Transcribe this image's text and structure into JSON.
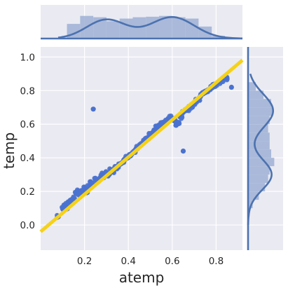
{
  "chart_data": {
    "type": "scatter",
    "subtype": "joint-plot-with-regression-and-marginal-distributions",
    "xlabel": "atemp",
    "ylabel": "temp",
    "xlim": [
      0.0,
      0.92
    ],
    "ylim": [
      -0.15,
      1.06
    ],
    "x_ticks": [
      0.2,
      0.4,
      0.6,
      0.8
    ],
    "x_tick_labels": [
      "0.2",
      "0.4",
      "0.6",
      "0.8"
    ],
    "y_ticks": [
      0.0,
      0.2,
      0.4,
      0.6,
      0.8,
      1.0
    ],
    "y_tick_labels": [
      "0.0",
      "0.2",
      "0.4",
      "0.6",
      "0.8",
      "1.0"
    ],
    "grid": true,
    "colors": {
      "background": "#eaeaf2",
      "grid": "#ffffff",
      "points": "#4a72cf",
      "regression_line": "#f5d218",
      "marginal_fill": "#a3b4d6",
      "marginal_line": "#4c72b0"
    },
    "regression": {
      "slope": 1.11,
      "intercept": -0.04,
      "x_range": [
        0.0,
        0.92
      ]
    },
    "points": [
      [
        0.08,
        0.05
      ],
      [
        0.1,
        0.1
      ],
      [
        0.11,
        0.12
      ],
      [
        0.12,
        0.1
      ],
      [
        0.13,
        0.13
      ],
      [
        0.14,
        0.15
      ],
      [
        0.15,
        0.16
      ],
      [
        0.16,
        0.19
      ],
      [
        0.17,
        0.2
      ],
      [
        0.18,
        0.18
      ],
      [
        0.19,
        0.2
      ],
      [
        0.2,
        0.22
      ],
      [
        0.21,
        0.2
      ],
      [
        0.22,
        0.23
      ],
      [
        0.23,
        0.25
      ],
      [
        0.24,
        0.24
      ],
      [
        0.25,
        0.27
      ],
      [
        0.26,
        0.26
      ],
      [
        0.27,
        0.28
      ],
      [
        0.28,
        0.3
      ],
      [
        0.29,
        0.29
      ],
      [
        0.3,
        0.31
      ],
      [
        0.31,
        0.3
      ],
      [
        0.32,
        0.33
      ],
      [
        0.33,
        0.32
      ],
      [
        0.34,
        0.34
      ],
      [
        0.35,
        0.34
      ],
      [
        0.36,
        0.36
      ],
      [
        0.37,
        0.37
      ],
      [
        0.38,
        0.38
      ],
      [
        0.39,
        0.4
      ],
      [
        0.4,
        0.41
      ],
      [
        0.41,
        0.42
      ],
      [
        0.42,
        0.43
      ],
      [
        0.43,
        0.44
      ],
      [
        0.44,
        0.46
      ],
      [
        0.45,
        0.47
      ],
      [
        0.46,
        0.48
      ],
      [
        0.47,
        0.5
      ],
      [
        0.48,
        0.51
      ],
      [
        0.49,
        0.52
      ],
      [
        0.5,
        0.54
      ],
      [
        0.51,
        0.55
      ],
      [
        0.52,
        0.56
      ],
      [
        0.53,
        0.58
      ],
      [
        0.54,
        0.59
      ],
      [
        0.55,
        0.6
      ],
      [
        0.56,
        0.61
      ],
      [
        0.57,
        0.62
      ],
      [
        0.58,
        0.63
      ],
      [
        0.59,
        0.64
      ],
      [
        0.6,
        0.63
      ],
      [
        0.61,
        0.62
      ],
      [
        0.62,
        0.6
      ],
      [
        0.63,
        0.61
      ],
      [
        0.64,
        0.64
      ],
      [
        0.65,
        0.67
      ],
      [
        0.66,
        0.68
      ],
      [
        0.67,
        0.69
      ],
      [
        0.68,
        0.7
      ],
      [
        0.69,
        0.71
      ],
      [
        0.7,
        0.72
      ],
      [
        0.71,
        0.74
      ],
      [
        0.72,
        0.75
      ],
      [
        0.73,
        0.77
      ],
      [
        0.74,
        0.78
      ],
      [
        0.75,
        0.79
      ],
      [
        0.76,
        0.8
      ],
      [
        0.77,
        0.81
      ],
      [
        0.78,
        0.82
      ],
      [
        0.79,
        0.83
      ],
      [
        0.8,
        0.84
      ],
      [
        0.82,
        0.85
      ],
      [
        0.83,
        0.86
      ],
      [
        0.85,
        0.87
      ],
      [
        0.24,
        0.69
      ],
      [
        0.65,
        0.44
      ],
      [
        0.87,
        0.82
      ]
    ],
    "marginal_x": {
      "hist_bins": [
        0.0,
        0.06,
        0.12,
        0.18,
        0.24,
        0.3,
        0.36,
        0.42,
        0.48,
        0.54,
        0.6,
        0.66,
        0.72,
        0.78,
        0.84
      ],
      "hist_counts": [
        0.0,
        0.0,
        0.55,
        0.85,
        0.8,
        0.65,
        0.75,
        0.8,
        0.82,
        0.85,
        0.8,
        0.75,
        0.45,
        0.1
      ],
      "kde_peak_x": [
        0.3,
        0.6
      ],
      "range": [
        0.08,
        0.92
      ]
    },
    "marginal_y": {
      "hist_bins": [
        0.05,
        0.1,
        0.15,
        0.2,
        0.25,
        0.3,
        0.35,
        0.4,
        0.45,
        0.5,
        0.55,
        0.6,
        0.65,
        0.7,
        0.75,
        0.8,
        0.85
      ],
      "hist_counts": [
        0.05,
        0.15,
        0.35,
        0.55,
        0.65,
        0.7,
        0.85,
        0.75,
        0.7,
        0.7,
        0.65,
        0.7,
        0.8,
        0.75,
        0.5,
        0.25
      ],
      "kde_peak_y": [
        0.3,
        0.68
      ],
      "range": [
        0.0,
        0.9
      ]
    }
  }
}
